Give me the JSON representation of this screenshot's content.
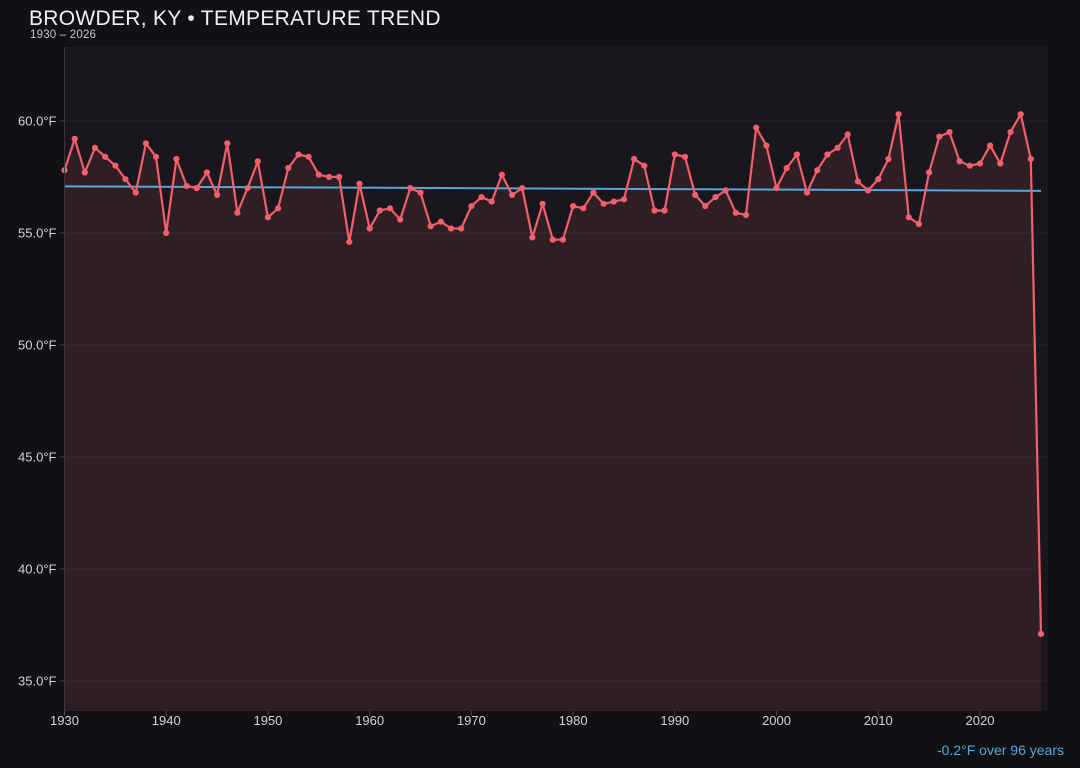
{
  "header": {
    "title": "BROWDER, KY • TEMPERATURE TREND",
    "subtitle": "1930 – 2026"
  },
  "footer": {
    "trend_note": "-0.2°F over 96 years"
  },
  "chart_data": {
    "type": "line",
    "title": "BROWDER, KY • TEMPERATURE TREND",
    "subtitle": "1930 – 2026",
    "xlabel": "",
    "ylabel": "",
    "legend": "none",
    "grid": "horizontal-faint",
    "xlim": [
      1930,
      2026
    ],
    "ylim": [
      33.66,
      63.3
    ],
    "series": [
      {
        "name": "annual-mean-temperature-f",
        "year_start": 1930,
        "year_end": 2026,
        "values": [
          57.8,
          59.2,
          57.7,
          58.8,
          58.4,
          58.0,
          57.4,
          56.8,
          59.0,
          58.4,
          55.0,
          58.3,
          57.1,
          57.0,
          57.7,
          56.7,
          59.0,
          55.9,
          57.0,
          58.2,
          55.7,
          56.1,
          57.9,
          58.5,
          58.4,
          57.6,
          57.5,
          57.5,
          54.6,
          57.2,
          55.2,
          56.0,
          56.1,
          55.6,
          57.0,
          56.8,
          55.3,
          55.5,
          55.2,
          55.2,
          56.2,
          56.6,
          56.4,
          57.6,
          56.7,
          57.0,
          54.8,
          56.3,
          54.7,
          54.7,
          56.2,
          56.1,
          56.8,
          56.3,
          56.4,
          56.5,
          58.3,
          58.0,
          56.0,
          56.0,
          58.5,
          58.4,
          56.7,
          56.2,
          56.6,
          56.9,
          55.9,
          55.8,
          59.7,
          58.9,
          57.0,
          57.9,
          58.5,
          56.8,
          57.8,
          58.5,
          58.8,
          59.4,
          57.3,
          56.9,
          57.4,
          58.3,
          60.3,
          55.7,
          55.4,
          57.7,
          59.3,
          59.5,
          58.2,
          58.0,
          58.1,
          58.9,
          58.1,
          59.5,
          60.3,
          58.3,
          37.1
        ]
      }
    ],
    "trendline": {
      "start_value": 57.08,
      "end_value": 56.88,
      "note": "-0.2°F over 96 years"
    },
    "y_ticks": [
      {
        "value": 35,
        "label": "35.0°F"
      },
      {
        "value": 40,
        "label": "40.0°F"
      },
      {
        "value": 45,
        "label": "45.0°F"
      },
      {
        "value": 50,
        "label": "50.0°F"
      },
      {
        "value": 55,
        "label": "55.0°F"
      },
      {
        "value": 60,
        "label": "60.0°F"
      }
    ],
    "x_ticks": [
      {
        "value": 1930,
        "label": "1930"
      },
      {
        "value": 1940,
        "label": "1940"
      },
      {
        "value": 1950,
        "label": "1950"
      },
      {
        "value": 1960,
        "label": "1960"
      },
      {
        "value": 1970,
        "label": "1970"
      },
      {
        "value": 1980,
        "label": "1980"
      },
      {
        "value": 1990,
        "label": "1990"
      },
      {
        "value": 2000,
        "label": "2000"
      },
      {
        "value": 2010,
        "label": "2010"
      },
      {
        "value": 2020,
        "label": "2020"
      }
    ],
    "colors": {
      "line": "#f0606b",
      "point": "#f0606b",
      "area_fill": "rgba(240,96,107,0.11)",
      "trend": "#56a7da",
      "plot_bg": "#19161d",
      "page_bg": "#111015",
      "grid": "rgba(255,255,255,0.05)",
      "axis": "#39363f",
      "tick": "#4a4750",
      "tick_text": "#d4d2d9",
      "title_text": "#f1f0f4",
      "subtitle_text": "#c7c5cc",
      "footer_text": "#58a9dc"
    }
  }
}
